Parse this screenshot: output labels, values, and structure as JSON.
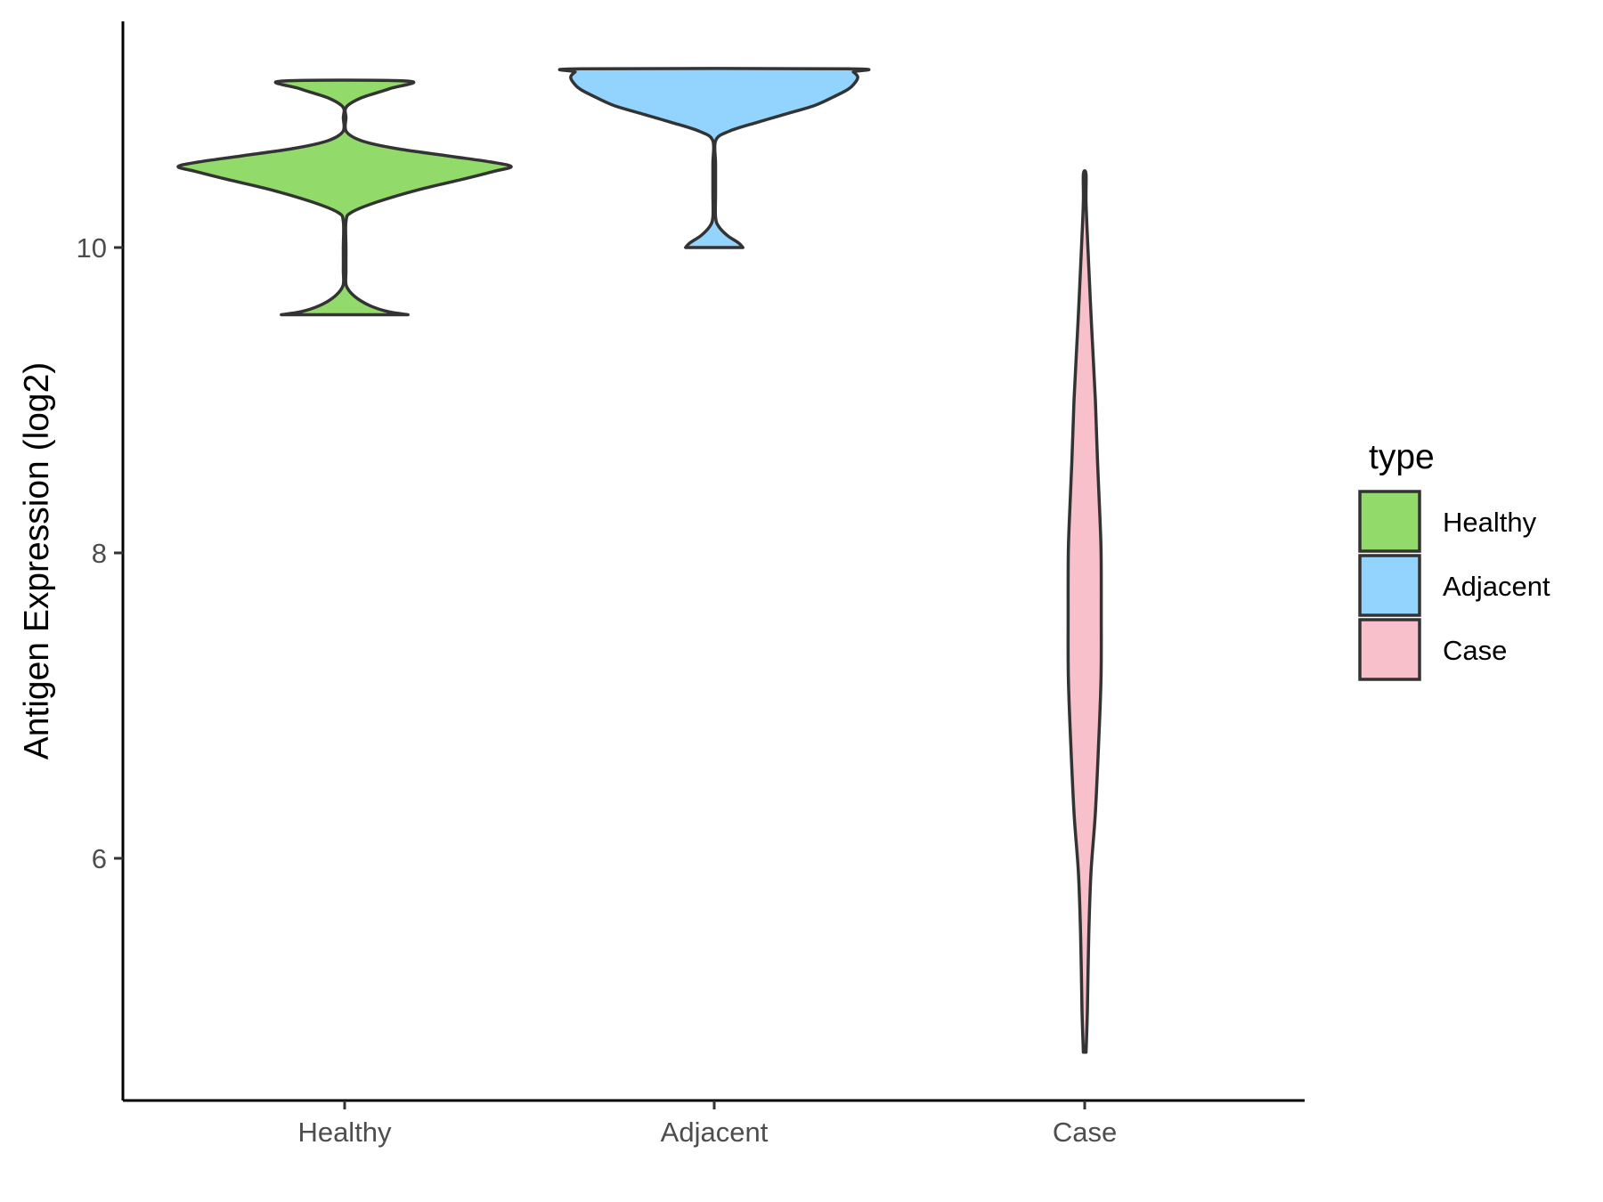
{
  "chart_data": {
    "type": "violin",
    "ylabel": "Antigen Expression (log2)",
    "y_ticks": [
      6,
      8,
      10
    ],
    "ylim": [
      4.6,
      11.6
    ],
    "grid": false,
    "categories": [
      "Healthy",
      "Adjacent",
      "Case"
    ],
    "legend": {
      "title": "type",
      "placement": "right",
      "entries": [
        "Healthy",
        "Adjacent",
        "Case"
      ]
    },
    "series": [
      {
        "name": "Healthy",
        "color": "#92DA6A",
        "min": 9.56,
        "max": 11.09,
        "density": [
          [
            9.56,
            0.38
          ],
          [
            9.58,
            0.26
          ],
          [
            9.62,
            0.15
          ],
          [
            9.68,
            0.06
          ],
          [
            9.75,
            0.01
          ],
          [
            9.85,
            0.0
          ],
          [
            10.0,
            0.0
          ],
          [
            10.17,
            0.0
          ],
          [
            10.23,
            0.04
          ],
          [
            10.3,
            0.2
          ],
          [
            10.38,
            0.45
          ],
          [
            10.45,
            0.72
          ],
          [
            10.5,
            0.9
          ],
          [
            10.53,
            1.0
          ],
          [
            10.56,
            0.88
          ],
          [
            10.6,
            0.62
          ],
          [
            10.65,
            0.3
          ],
          [
            10.7,
            0.1
          ],
          [
            10.76,
            0.01
          ],
          [
            10.85,
            0.0
          ],
          [
            10.92,
            0.01
          ],
          [
            10.98,
            0.1
          ],
          [
            11.04,
            0.27
          ],
          [
            11.09,
            0.38
          ]
        ]
      },
      {
        "name": "Adjacent",
        "color": "#92D4FE",
        "min": 10.0,
        "max": 11.17,
        "density": [
          [
            10.0,
            0.2
          ],
          [
            10.03,
            0.17
          ],
          [
            10.08,
            0.09
          ],
          [
            10.14,
            0.03
          ],
          [
            10.2,
            0.0
          ],
          [
            10.35,
            0.0
          ],
          [
            10.55,
            0.0
          ],
          [
            10.7,
            0.01
          ],
          [
            10.76,
            0.1
          ],
          [
            10.82,
            0.3
          ],
          [
            10.88,
            0.52
          ],
          [
            10.93,
            0.7
          ],
          [
            10.99,
            0.84
          ],
          [
            11.04,
            0.94
          ],
          [
            11.09,
            0.99
          ],
          [
            11.12,
            1.0
          ],
          [
            11.15,
            0.97
          ],
          [
            11.17,
            0.93
          ]
        ]
      },
      {
        "name": "Case",
        "color": "#F8C0CB",
        "min": 4.73,
        "max": 10.48,
        "density": [
          [
            4.73,
            0.0
          ],
          [
            5.0,
            0.15
          ],
          [
            5.5,
            0.23
          ],
          [
            5.9,
            0.35
          ],
          [
            6.3,
            0.6
          ],
          [
            6.8,
            0.8
          ],
          [
            7.2,
            0.92
          ],
          [
            7.6,
            0.93
          ],
          [
            8.0,
            0.92
          ],
          [
            8.3,
            0.83
          ],
          [
            8.6,
            0.72
          ],
          [
            9.0,
            0.6
          ],
          [
            9.5,
            0.38
          ],
          [
            10.0,
            0.18
          ],
          [
            10.3,
            0.06
          ],
          [
            10.48,
            0.0
          ]
        ]
      }
    ]
  }
}
